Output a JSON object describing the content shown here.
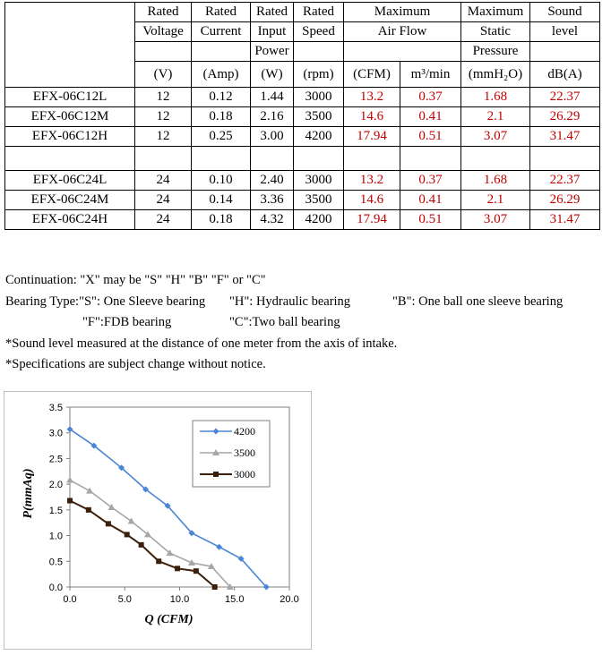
{
  "table": {
    "header_top": [
      "Rated",
      "Rated",
      "Rated",
      "Rated",
      "Maximum",
      "Maximum",
      "Sound"
    ],
    "header_mid": [
      "Voltage",
      "Current",
      "Input",
      "Speed",
      "Air Flow",
      "Static",
      "level"
    ],
    "header_power": "Power",
    "header_pressure": "Pressure",
    "units": [
      "(V)",
      "(Amp)",
      "(W)",
      "(rpm)",
      "(CFM)",
      "m³/min",
      "(mmH₂O)",
      "dB(A)"
    ],
    "group1": [
      {
        "model": "EFX-06C12L",
        "v": "12",
        "a": "0.12",
        "w": "1.44",
        "rpm": "3000",
        "cfm": "13.2",
        "m3": "0.37",
        "p": "1.68",
        "db": "22.37"
      },
      {
        "model": "EFX-06C12M",
        "v": "12",
        "a": "0.18",
        "w": "2.16",
        "rpm": "3500",
        "cfm": "14.6",
        "m3": "0.41",
        "p": "2.1",
        "db": "26.29"
      },
      {
        "model": "EFX-06C12H",
        "v": "12",
        "a": "0.25",
        "w": "3.00",
        "rpm": "4200",
        "cfm": "17.94",
        "m3": "0.51",
        "p": "3.07",
        "db": "31.47"
      }
    ],
    "group2": [
      {
        "model": "EFX-06C24L",
        "v": "24",
        "a": "0.10",
        "w": "2.40",
        "rpm": "3000",
        "cfm": "13.2",
        "m3": "0.37",
        "p": "1.68",
        "db": "22.37"
      },
      {
        "model": "EFX-06C24M",
        "v": "24",
        "a": "0.14",
        "w": "3.36",
        "rpm": "3500",
        "cfm": "14.6",
        "m3": "0.41",
        "p": "2.1",
        "db": "26.29"
      },
      {
        "model": "EFX-06C24H",
        "v": "24",
        "a": "0.18",
        "w": "4.32",
        "rpm": "4200",
        "cfm": "17.94",
        "m3": "0.51",
        "p": "3.07",
        "db": "31.47"
      }
    ]
  },
  "notes": {
    "continuation": "Continuation: \"X\" may  be  \"S\"  \"H\"  \"B\"  \"F\"  or  \"C\"",
    "bearing_label": "Bearing Type:\"S\": One Sleeve bearing",
    "bearing_h": "\"H\": Hydraulic  bearing",
    "bearing_b": "\"B\": One ball one sleeve bearing",
    "bearing_f": "\"F\":FDB   bearing",
    "bearing_c": "\"C\":Two ball bearing",
    "sound_note": "*Sound level measured at the distance of one meter from the axis of intake.",
    "spec_note": "*Specifications are subject change without notice."
  },
  "colors": {
    "red_values": "#c00000",
    "s4200": "#4a86d4",
    "s3500": "#a6a6a6",
    "s3000": "#3b1f0b"
  },
  "chart_data": {
    "type": "line",
    "xlabel": "Q (CFM)",
    "ylabel": "P(mmAq)",
    "xlim": [
      0,
      20
    ],
    "ylim": [
      0,
      3.5
    ],
    "xticks": [
      "0.0",
      "5.0",
      "10.0",
      "15.0",
      "20.0"
    ],
    "yticks": [
      "0.0",
      "0.5",
      "1.0",
      "1.5",
      "2.0",
      "2.5",
      "3.0",
      "3.5"
    ],
    "legend_position": "top-right",
    "series": [
      {
        "name": "4200",
        "marker": "diamond",
        "x": [
          0,
          2.2,
          4.7,
          6.9,
          8.9,
          11.1,
          13.6,
          15.6,
          17.9
        ],
        "y": [
          3.07,
          2.75,
          2.32,
          1.9,
          1.58,
          1.05,
          0.78,
          0.55,
          0
        ]
      },
      {
        "name": "3500",
        "marker": "triangle",
        "x": [
          0,
          1.8,
          3.8,
          5.6,
          7.1,
          9.1,
          11.1,
          12.9,
          14.6
        ],
        "y": [
          2.08,
          1.87,
          1.55,
          1.28,
          1.02,
          0.66,
          0.47,
          0.4,
          0
        ]
      },
      {
        "name": "3000",
        "marker": "square",
        "x": [
          0,
          1.7,
          3.5,
          5.2,
          6.5,
          8.1,
          9.8,
          11.5,
          13.2
        ],
        "y": [
          1.68,
          1.5,
          1.23,
          1.02,
          0.82,
          0.5,
          0.36,
          0.31,
          0
        ]
      }
    ]
  }
}
